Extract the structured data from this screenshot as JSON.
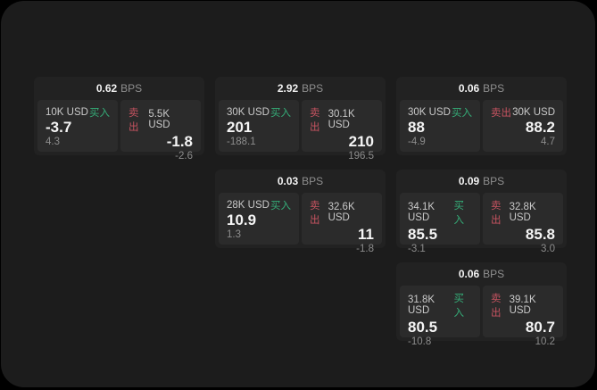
{
  "labels": {
    "buy": "买入",
    "sell": "卖出",
    "bps_unit": "BPS"
  },
  "colors": {
    "background": "#000000",
    "surface": "#1c1c1c",
    "card": "#222222",
    "panel": "#2b2b2b",
    "buy_green": "#35ad78",
    "sell_red": "#c65360",
    "price_white": "#f5f5f5",
    "muted_gray": "#8c8c8c"
  },
  "cards": [
    {
      "bps": "0.62",
      "buy": {
        "amount": "10K USD",
        "price": "-3.7",
        "delta": "4.3"
      },
      "sell": {
        "amount": "5.5K USD",
        "price": "-1.8",
        "delta": "-2.6"
      }
    },
    {
      "bps": "2.92",
      "buy": {
        "amount": "30K USD",
        "price": "201",
        "delta": "-188.1"
      },
      "sell": {
        "amount": "30.1K USD",
        "price": "210",
        "delta": "196.5"
      }
    },
    {
      "bps": "0.06",
      "buy": {
        "amount": "30K USD",
        "price": "88",
        "delta": "-4.9"
      },
      "sell": {
        "amount": "30K USD",
        "price": "88.2",
        "delta": "4.7"
      }
    },
    {
      "bps": "0.03",
      "buy": {
        "amount": "28K USD",
        "price": "10.9",
        "delta": "1.3"
      },
      "sell": {
        "amount": "32.6K USD",
        "price": "11",
        "delta": "-1.8"
      }
    },
    {
      "bps": "0.09",
      "buy": {
        "amount": "34.1K USD",
        "price": "85.5",
        "delta": "-3.1"
      },
      "sell": {
        "amount": "32.8K USD",
        "price": "85.8",
        "delta": "3.0"
      }
    },
    {
      "bps": "0.06",
      "buy": {
        "amount": "31.8K USD",
        "price": "80.5",
        "delta": "-10.8"
      },
      "sell": {
        "amount": "39.1K USD",
        "price": "80.7",
        "delta": "10.2"
      }
    }
  ]
}
